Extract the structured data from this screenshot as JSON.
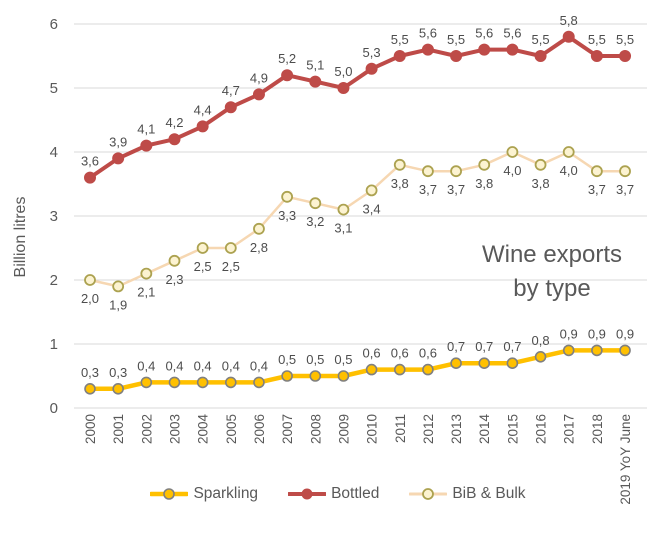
{
  "chart_data": {
    "type": "line",
    "title": "Wine exports by type",
    "title_lines": [
      "Wine exports",
      "by type"
    ],
    "ylabel": "Billion litres",
    "xlabel": "",
    "ylim": [
      0,
      6
    ],
    "yticks": [
      0,
      1,
      2,
      3,
      4,
      5,
      6
    ],
    "grid": true,
    "legend_position": "bottom",
    "decimal_separator": ",",
    "categories": [
      "2000",
      "2001",
      "2002",
      "2003",
      "2004",
      "2005",
      "2006",
      "2007",
      "2008",
      "2009",
      "2010",
      "2011",
      "2012",
      "2013",
      "2014",
      "2015",
      "2016",
      "2017",
      "2018",
      "2019 YoY June"
    ],
    "series": [
      {
        "name": "Sparkling",
        "color": "#FFC000",
        "marker_fill": "#FFC000",
        "marker_stroke": "#808080",
        "label_pos": "above",
        "values": [
          0.3,
          0.3,
          0.4,
          0.4,
          0.4,
          0.4,
          0.4,
          0.5,
          0.5,
          0.5,
          0.6,
          0.6,
          0.6,
          0.7,
          0.7,
          0.7,
          0.8,
          0.9,
          0.9,
          0.9
        ],
        "labels": [
          "0,3",
          "0,3",
          "0,4",
          "0,4",
          "0,4",
          "0,4",
          "0,4",
          "0,5",
          "0,5",
          "0,5",
          "0,6",
          "0,6",
          "0,6",
          "0,7",
          "0,7",
          "0,7",
          "0,8",
          "0,9",
          "0,9",
          "0,9"
        ]
      },
      {
        "name": "Bottled",
        "color": "#BE4B48",
        "marker_fill": "#BE4B48",
        "marker_stroke": "#BE4B48",
        "label_pos": "above",
        "values": [
          3.6,
          3.9,
          4.1,
          4.2,
          4.4,
          4.7,
          4.9,
          5.2,
          5.1,
          5.0,
          5.3,
          5.5,
          5.6,
          5.5,
          5.6,
          5.6,
          5.5,
          5.8,
          5.5,
          5.5
        ],
        "labels": [
          "3,6",
          "3,9",
          "4,1",
          "4,2",
          "4,4",
          "4,7",
          "4,9",
          "5,2",
          "5,1",
          "5,0",
          "5,3",
          "5,5",
          "5,6",
          "5,5",
          "5,6",
          "5,6",
          "5,5",
          "5,8",
          "5,5",
          "5,5"
        ]
      },
      {
        "name": "BiB & Bulk",
        "color": "#F6D7B2",
        "marker_fill": "#FCF3D1",
        "marker_stroke": "#ACA250",
        "label_pos": "below",
        "values": [
          2.0,
          1.9,
          2.1,
          2.3,
          2.5,
          2.5,
          2.8,
          3.3,
          3.2,
          3.1,
          3.4,
          3.8,
          3.7,
          3.7,
          3.8,
          4.0,
          3.8,
          4.0,
          3.7,
          3.7
        ],
        "labels": [
          "2,0",
          "1,9",
          "2,1",
          "2,3",
          "2,5",
          "2,5",
          "2,8",
          "3,3",
          "3,2",
          "3,1",
          "3,4",
          "3,8",
          "3,7",
          "3,7",
          "3,8",
          "4,0",
          "3,8",
          "4,0",
          "3,7",
          "3,7"
        ]
      }
    ],
    "colors": {
      "gridline": "#D8D8D8",
      "axis_text": "#595959",
      "data_label": "#4D4D4D",
      "title_text": "#595959"
    }
  }
}
